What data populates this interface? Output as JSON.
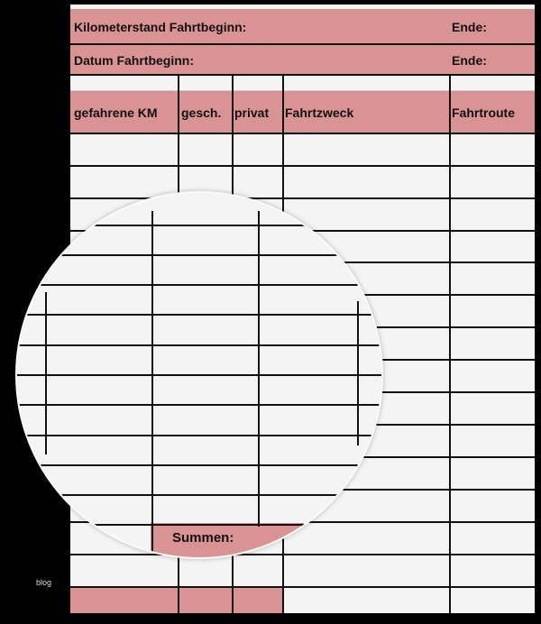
{
  "header": {
    "km_start_label": "Kilometerstand Fahrtbeginn:",
    "km_end_label": "Ende:",
    "date_start_label": "Datum Fahrtbeginn:",
    "date_end_label": "Ende:"
  },
  "table": {
    "columns": [
      "gefahrene KM",
      "gesch.",
      "privat",
      "Fahrtzweck",
      "Fahrtroute"
    ],
    "sum_label": "Summen:"
  },
  "colors": {
    "header_fill": "#d99393",
    "background": "#000000",
    "sheet": "#f4f4f4"
  },
  "watermark": "blog"
}
